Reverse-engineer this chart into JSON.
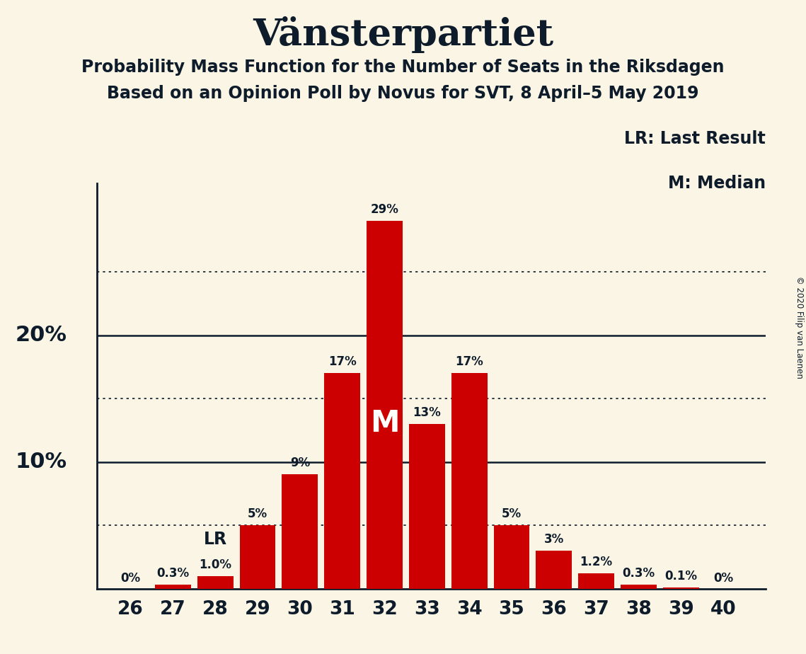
{
  "title": "Vänsterpartiet",
  "subtitle1": "Probability Mass Function for the Number of Seats in the Riksdagen",
  "subtitle2": "Based on an Opinion Poll by Novus for SVT, 8 April–5 May 2019",
  "copyright": "© 2020 Filip van Laenen",
  "seats": [
    26,
    27,
    28,
    29,
    30,
    31,
    32,
    33,
    34,
    35,
    36,
    37,
    38,
    39,
    40
  ],
  "probs": [
    0.0,
    0.3,
    1.0,
    5.0,
    9.0,
    17.0,
    29.0,
    13.0,
    17.0,
    5.0,
    3.0,
    1.2,
    0.3,
    0.1,
    0.0
  ],
  "bar_color": "#cc0000",
  "background_color": "#faf5e4",
  "text_color": "#0d1b2a",
  "lr_seat": 28,
  "median_seat": 32,
  "dotted_lines": [
    5,
    15,
    25
  ],
  "solid_lines": [
    10,
    20
  ],
  "bar_labels": [
    "0%",
    "0.3%",
    "1.0%",
    "5%",
    "9%",
    "17%",
    "29%",
    "13%",
    "17%",
    "5%",
    "3%",
    "1.2%",
    "0.3%",
    "0.1%",
    "0%"
  ],
  "legend_text1": "LR: Last Result",
  "legend_text2": "M: Median",
  "ymax": 32
}
